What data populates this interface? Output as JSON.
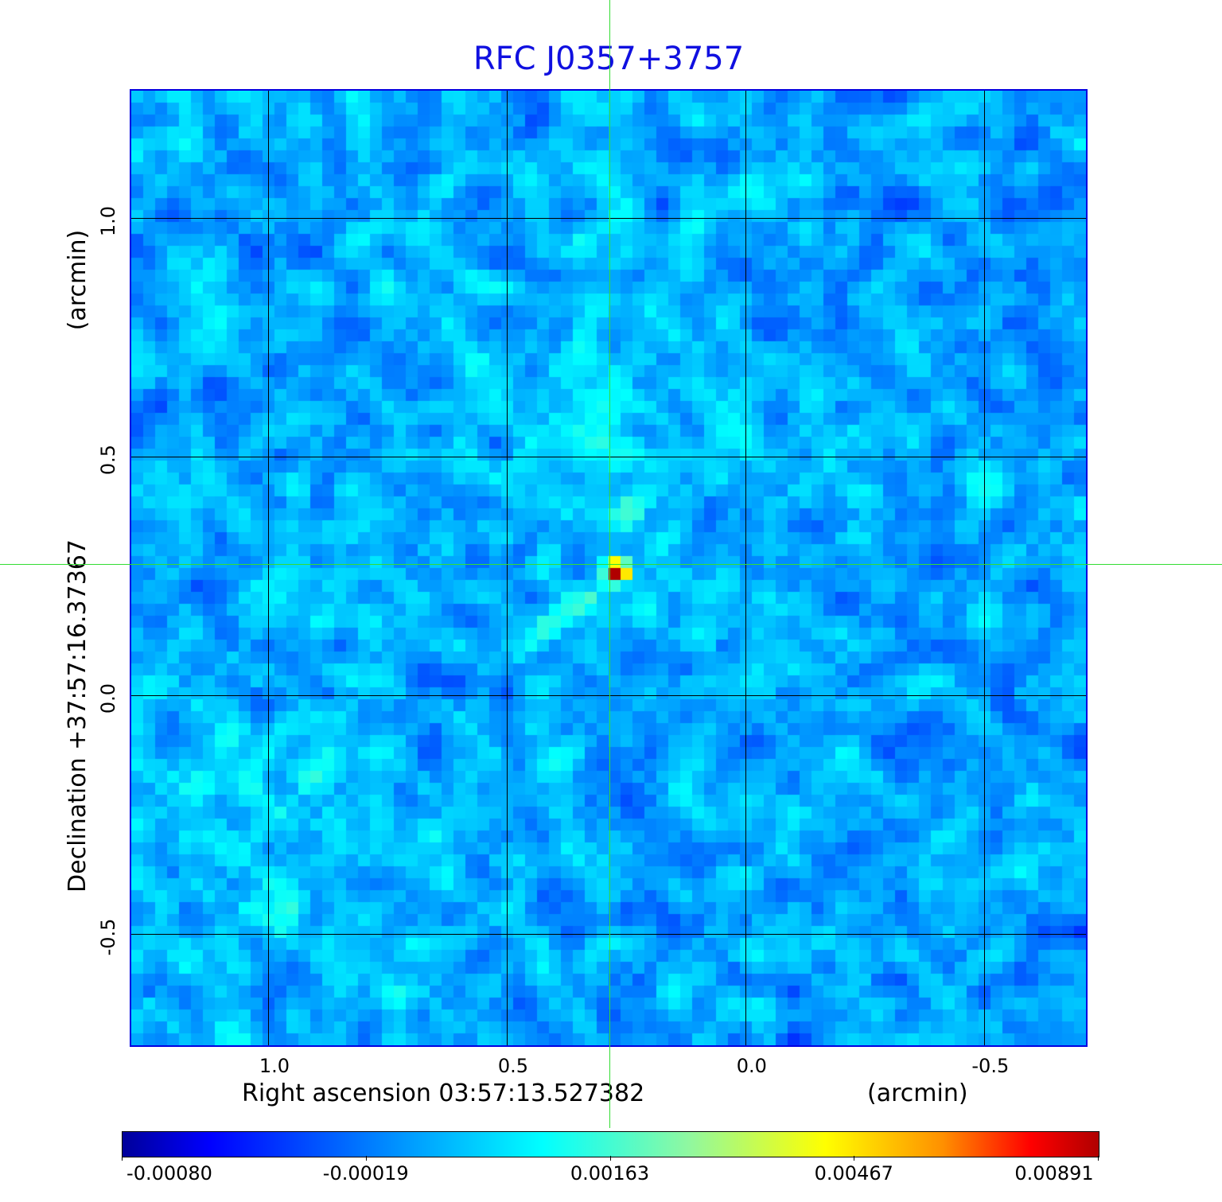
{
  "chart_data": {
    "type": "heatmap",
    "title": "RFC J0357+3757",
    "xlabel": "Right ascension  03:57:13.527382",
    "xunit": "(arcmin)",
    "ylabel": "Declination  +37:57:16.37367",
    "yunit": "(arcmin)",
    "xlim": [
      1.29,
      -0.717
    ],
    "ylim": [
      -0.737,
      1.27
    ],
    "xticks": [
      {
        "value": 1.0,
        "label": "1.0"
      },
      {
        "value": 0.5,
        "label": "0.5"
      },
      {
        "value": 0.0,
        "label": "0.0"
      },
      {
        "value": -0.5,
        "label": "-0.5"
      }
    ],
    "yticks": [
      {
        "value": 1.0,
        "label": "1.0"
      },
      {
        "value": 0.5,
        "label": "0.5"
      },
      {
        "value": 0.0,
        "label": "0.0"
      },
      {
        "value": -0.5,
        "label": "-0.5"
      }
    ],
    "grid": true,
    "crosshair": {
      "x": 0.283,
      "y": 0.275
    },
    "source_peak": {
      "x": 0.283,
      "y": 0.275,
      "value": 0.00891
    },
    "colorbar": {
      "placement": "bottom",
      "ticks": [
        "-0.00080",
        "-0.00019",
        "0.00163",
        "0.00467",
        "0.00891"
      ],
      "tick_values": [
        -0.0008,
        -0.00019,
        0.00163,
        0.00467,
        0.00891
      ],
      "colormap": [
        "#00009a",
        "#0000ff",
        "#00a0ff",
        "#00ffff",
        "#90f8a0",
        "#ffff00",
        "#ff9000",
        "#ff0000",
        "#b00000"
      ]
    },
    "frame_color": "#0000e0",
    "title_color": "#1010e0",
    "crosshair_color": "#33dd33"
  }
}
